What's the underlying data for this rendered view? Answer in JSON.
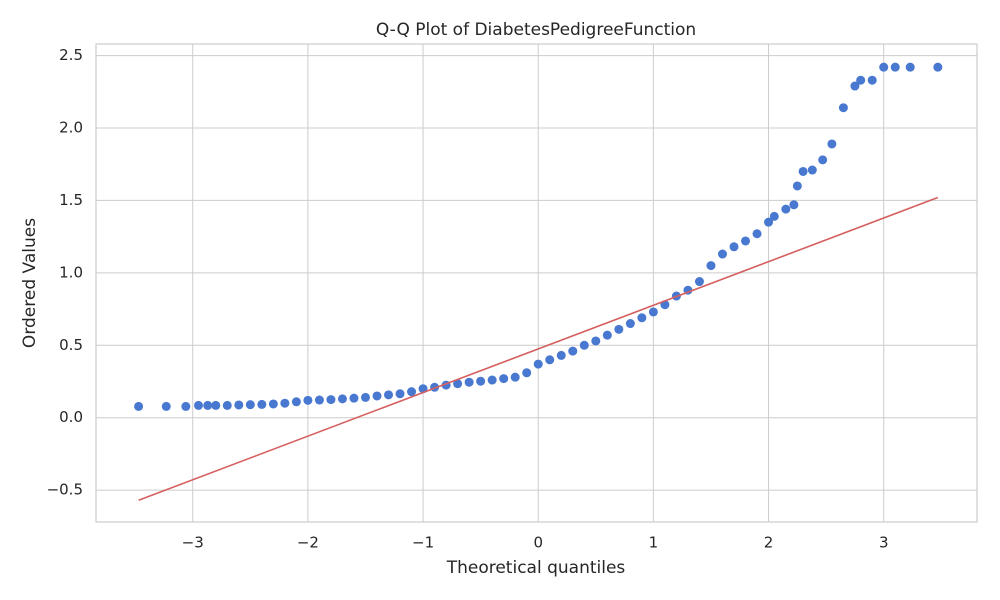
{
  "chart_data": {
    "type": "scatter",
    "title": "Q-Q Plot of DiabetesPedigreeFunction",
    "x_label": "Theoretical quantiles",
    "y_label": "Ordered Values",
    "points": {
      "color": "#4878d0",
      "x": [
        -3.47,
        -3.23,
        -3.06,
        -2.95,
        -2.87,
        -2.8,
        -2.7,
        -2.6,
        -2.5,
        -2.4,
        -2.3,
        -2.2,
        -2.1,
        -2.0,
        -1.9,
        -1.8,
        -1.7,
        -1.6,
        -1.5,
        -1.4,
        -1.3,
        -1.2,
        -1.1,
        -1.0,
        -0.9,
        -0.8,
        -0.7,
        -0.6,
        -0.5,
        -0.4,
        -0.3,
        -0.2,
        -0.1,
        0,
        0.1,
        0.2,
        0.3,
        0.4,
        0.5,
        0.6,
        0.7,
        0.8,
        0.9,
        1.0,
        1.1,
        1.2,
        1.3,
        1.4,
        1.5,
        1.6,
        1.7,
        1.8,
        1.9,
        2.0,
        2.05,
        2.15,
        2.22,
        2.25,
        2.3,
        2.38,
        2.47,
        2.55,
        2.65,
        2.75,
        2.8,
        2.9,
        3.0,
        3.1,
        3.23,
        3.47
      ],
      "y": [
        0.078,
        0.078,
        0.078,
        0.085,
        0.085,
        0.085,
        0.085,
        0.088,
        0.09,
        0.092,
        0.095,
        0.1,
        0.11,
        0.12,
        0.122,
        0.125,
        0.13,
        0.135,
        0.14,
        0.15,
        0.158,
        0.165,
        0.18,
        0.2,
        0.21,
        0.225,
        0.235,
        0.245,
        0.252,
        0.26,
        0.27,
        0.28,
        0.31,
        0.37,
        0.4,
        0.43,
        0.46,
        0.5,
        0.53,
        0.57,
        0.61,
        0.65,
        0.69,
        0.73,
        0.78,
        0.84,
        0.88,
        0.94,
        1.05,
        1.13,
        1.18,
        1.22,
        1.27,
        1.35,
        1.39,
        1.44,
        1.47,
        1.6,
        1.7,
        1.71,
        1.78,
        1.89,
        2.14,
        2.29,
        2.33,
        2.33,
        2.42,
        2.42,
        2.42,
        2.42
      ]
    },
    "fit_line": {
      "color": "#d65f5f",
      "x": [
        -3.47,
        3.47
      ],
      "y": [
        -0.57,
        1.52
      ]
    },
    "xlim": [
      -3.84,
      3.81
    ],
    "ylim": [
      -0.72,
      2.58
    ],
    "xticks": [
      {
        "value": -3,
        "label": "−3"
      },
      {
        "value": -2,
        "label": "−2"
      },
      {
        "value": -1,
        "label": "−1"
      },
      0,
      1,
      2,
      3
    ],
    "yticks": [
      {
        "value": -0.5,
        "label": "−0.5"
      },
      {
        "value": 0,
        "label": "0.0"
      },
      0.5,
      {
        "value": 1,
        "label": "1.0"
      },
      1.5,
      {
        "value": 2,
        "label": "2.0"
      },
      2.5
    ],
    "grid": true
  }
}
